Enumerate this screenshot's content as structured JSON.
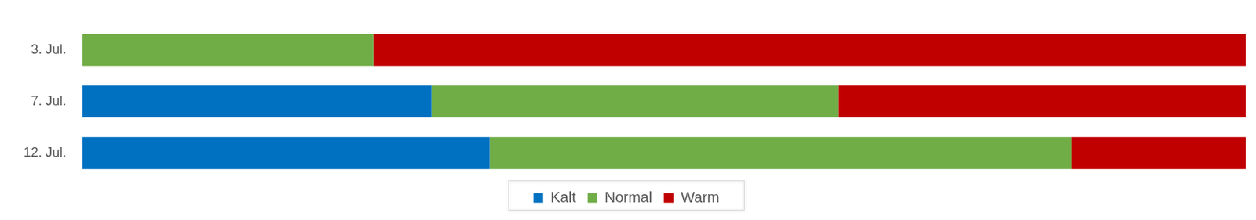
{
  "chart_data": {
    "type": "bar",
    "orientation": "horizontal",
    "stacked": true,
    "categories": [
      "3. Jul.",
      "7. Jul.",
      "12. Jul."
    ],
    "series": [
      {
        "name": "Kalt",
        "color": "#0070c0",
        "values": [
          0,
          30,
          35
        ]
      },
      {
        "name": "Normal",
        "color": "#70ad47",
        "values": [
          25,
          35,
          50
        ]
      },
      {
        "name": "Warm",
        "color": "#c00000",
        "values": [
          75,
          35,
          15
        ]
      }
    ],
    "xlim": [
      0,
      100
    ],
    "grid": false,
    "legend": "bottom",
    "tick_labels": "y"
  }
}
